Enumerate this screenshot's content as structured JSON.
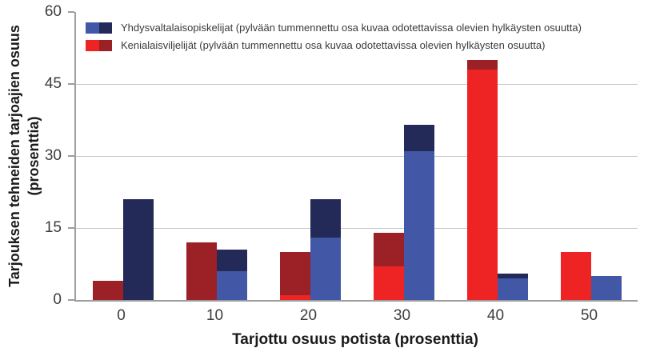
{
  "figure": {
    "y_axis": {
      "title_line1": "Tarjouksen tehneiden tarjoajien osuus",
      "title_line2": "(prosenttia)",
      "tick_labels": [
        "0",
        "15",
        "30",
        "45",
        "60"
      ]
    },
    "x_axis": {
      "title": "Tarjottu osuus potista (prosenttia)",
      "tick_labels": [
        "0",
        "10",
        "20",
        "30",
        "40",
        "50"
      ]
    },
    "legend": [
      {
        "series": "us_students",
        "label": "Yhdysvaltalaisopiskelijat (pylvään tummennettu osa kuvaa odotettavissa olevien hylkäysten osuutta)"
      },
      {
        "series": "kenyan_farmers",
        "label": "Kenialaisviljelijät (pylvään tummennettu osa kuvaa odotettavissa olevien hylkäysten osuutta)"
      }
    ],
    "colors": {
      "gridline": "#c8c8c8",
      "axis_line": "#9e9e9e",
      "tick_text": "#3d3d3d",
      "title_text": "#1a1a1a"
    }
  },
  "chart_data": {
    "type": "bar",
    "title": "",
    "xlabel": "Tarjottu osuus potista (prosenttia)",
    "ylabel": "Tarjouksen tehneiden tarjoajien osuus (prosenttia)",
    "ylim": [
      0,
      60
    ],
    "yticks": [
      0,
      15,
      30,
      45,
      60
    ],
    "gridlines": [
      15,
      30,
      45
    ],
    "grid": "horizontal only",
    "legend_position": "top-left inside plot area",
    "categories": [
      0,
      10,
      20,
      30,
      40,
      50
    ],
    "series": [
      {
        "id": "us_students",
        "name": "Yhdysvaltalaisopiskelijat",
        "bar_position": "right",
        "light_color": "#4257a5",
        "dark_color": "#232a58",
        "total_percent": [
          21,
          10.5,
          21,
          36.5,
          5.5,
          5
        ],
        "light_portion_percent": [
          0,
          6,
          13,
          31,
          4.5,
          5
        ],
        "dark_portion_expected_rejections_percent": [
          21,
          4.5,
          8,
          5.5,
          1,
          0
        ]
      },
      {
        "id": "kenyan_farmers",
        "name": "Kenialaisviljelijät",
        "bar_position": "left",
        "light_color": "#ee2424",
        "dark_color": "#9c2126",
        "total_percent": [
          4,
          12,
          10,
          14,
          50,
          10
        ],
        "light_portion_percent": [
          0,
          0,
          1,
          7,
          48,
          10
        ],
        "dark_portion_expected_rejections_percent": [
          4,
          12,
          9,
          7,
          2,
          0
        ]
      }
    ]
  }
}
